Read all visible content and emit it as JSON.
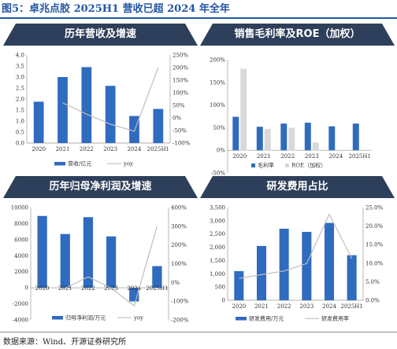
{
  "page": {
    "figure_title": "图5：卓兆点胶 2025H1 营收已超 2024 年全年",
    "source": "数据来源：Wind、开源证券研究所"
  },
  "colors": {
    "bar": "#2f6bbf",
    "bar_gray": "#d9d9d9",
    "line": "#bfbfbf",
    "header_bg": "#2d3f5a"
  },
  "chart_data": [
    {
      "type": "bar",
      "title": "历年营收及增速",
      "categories": [
        "2020",
        "2021",
        "2022",
        "2023",
        "2024",
        "2025H1"
      ],
      "series": [
        {
          "name": "营收/亿元",
          "type": "bar",
          "axis": "left",
          "values": [
            1.88,
            3.0,
            3.45,
            2.6,
            1.23,
            1.55
          ]
        },
        {
          "name": "yoy",
          "type": "line",
          "axis": "right",
          "values": [
            null,
            60,
            15,
            -25,
            -53,
            200
          ]
        }
      ],
      "ylim_left": [
        0,
        4.0
      ],
      "yticks_left": [
        "0.0",
        "0.5",
        "1.0",
        "1.5",
        "2.0",
        "2.5",
        "3.0",
        "3.5",
        "4.0"
      ],
      "ylim_right": [
        -100,
        250
      ],
      "yticks_right": [
        "-100%",
        "-50%",
        "0%",
        "50%",
        "100%",
        "150%",
        "200%",
        "250%"
      ]
    },
    {
      "type": "bar",
      "title": "销售毛利率及ROE（加权）",
      "categories": [
        "2020",
        "2021",
        "2022",
        "2023",
        "2024",
        "2025H1"
      ],
      "series": [
        {
          "name": "毛利率",
          "type": "bar",
          "values": [
            74,
            52,
            59,
            61,
            53,
            59
          ]
        },
        {
          "name": "ROE（加权）",
          "type": "bar",
          "values": [
            180,
            47,
            50,
            17,
            -2,
            null
          ]
        }
      ],
      "ylim": [
        -50,
        200
      ],
      "yticks": [
        "-50%",
        "0%",
        "50%",
        "100%",
        "150%",
        "200%"
      ]
    },
    {
      "type": "bar",
      "title": "历年归母净利润及增速",
      "categories": [
        "2020",
        "2021",
        "2022",
        "2023",
        "2024",
        "2025H1"
      ],
      "series": [
        {
          "name": "归母净利润/万元",
          "type": "bar",
          "axis": "left",
          "values": [
            8950,
            6700,
            8800,
            6400,
            -1700,
            2700
          ]
        },
        {
          "name": "yoy",
          "type": "line",
          "axis": "right",
          "values": [
            null,
            -30,
            30,
            -30,
            -125,
            300
          ]
        }
      ],
      "ylim_left": [
        -4000,
        10000
      ],
      "yticks_left": [
        "-4000",
        "-2000",
        "0",
        "2000",
        "4000",
        "6000",
        "8000",
        "10000"
      ],
      "ylim_right": [
        -200,
        400
      ],
      "yticks_right": [
        "-200%",
        "-100%",
        "0%",
        "100%",
        "200%",
        "300%",
        "400%"
      ]
    },
    {
      "type": "bar",
      "title": "研发费用占比",
      "categories": [
        "2020",
        "2021",
        "2022",
        "2023",
        "2024",
        "2025H1"
      ],
      "series": [
        {
          "name": "研发费用/万元",
          "type": "bar",
          "axis": "left",
          "values": [
            1100,
            2050,
            2700,
            2580,
            2920,
            1700
          ]
        },
        {
          "name": "研发费用率",
          "type": "line",
          "axis": "right",
          "values": [
            5.9,
            6.9,
            7.9,
            9.9,
            23.2,
            11.2
          ]
        }
      ],
      "ylim_left": [
        0,
        3500
      ],
      "yticks_left": [
        "0",
        "500",
        "1,000",
        "1,500",
        "2,000",
        "2,500",
        "3,000",
        "3,500"
      ],
      "ylim_right": [
        0,
        25
      ],
      "yticks_right": [
        "0.0%",
        "5.0%",
        "10.0%",
        "15.0%",
        "20.0%",
        "25.0%"
      ]
    }
  ]
}
